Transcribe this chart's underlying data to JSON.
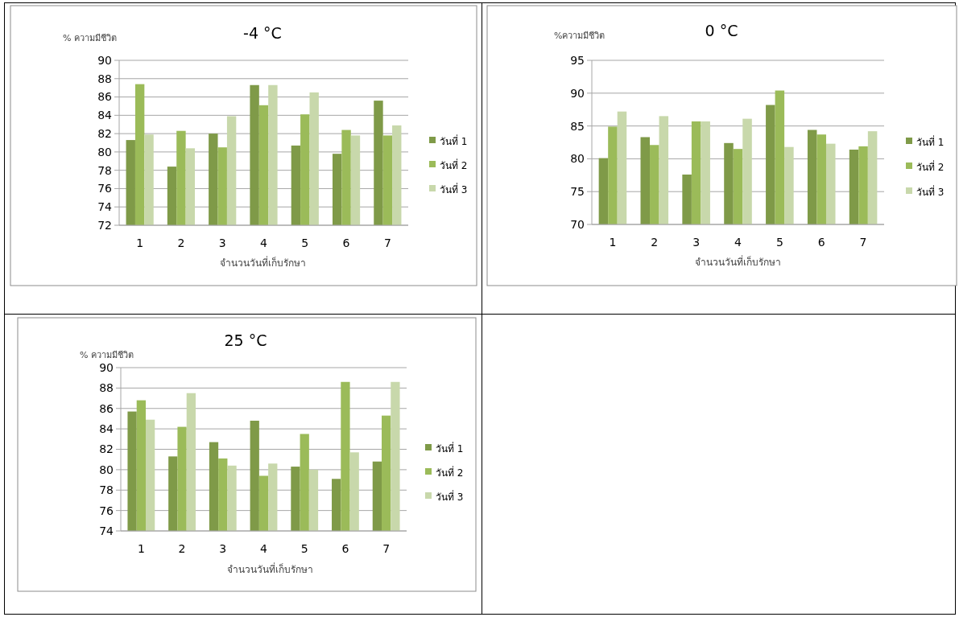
{
  "chart_data": [
    {
      "type": "bar",
      "title": "-4 °C",
      "ylabel": "% ความมีชีวิต",
      "xlabel": "จำนวนวันที่เก็บรักษา",
      "categories": [
        "1",
        "2",
        "3",
        "4",
        "5",
        "6",
        "7"
      ],
      "ylim": [
        72,
        90
      ],
      "yticks": [
        72,
        74,
        76,
        78,
        80,
        82,
        84,
        86,
        88,
        90
      ],
      "grid": "y",
      "legend": "right",
      "series": [
        {
          "name": "วันที่ 1",
          "color": "#7f9a48",
          "values": [
            81.3,
            78.4,
            82.0,
            87.3,
            80.7,
            79.8,
            85.6
          ]
        },
        {
          "name": "วันที่ 2",
          "color": "#9bbb59",
          "values": [
            87.4,
            82.3,
            80.5,
            85.1,
            84.1,
            82.4,
            81.8
          ]
        },
        {
          "name": "วันที่ 3",
          "color": "#c8d8ab",
          "values": [
            81.9,
            80.4,
            83.9,
            87.3,
            86.5,
            81.8,
            82.9
          ]
        }
      ]
    },
    {
      "type": "bar",
      "title": "0 °C",
      "ylabel": "%ความมีชีวิต",
      "xlabel": "จำนวนวันที่เก็บรักษา",
      "categories": [
        "1",
        "2",
        "3",
        "4",
        "5",
        "6",
        "7"
      ],
      "ylim": [
        70,
        95
      ],
      "yticks": [
        70,
        75,
        80,
        85,
        90,
        95
      ],
      "grid": "y",
      "legend": "right",
      "series": [
        {
          "name": "วันที่ 1",
          "color": "#7f9a48",
          "values": [
            80.1,
            83.3,
            77.6,
            82.4,
            88.2,
            84.4,
            81.4
          ]
        },
        {
          "name": "วันที่ 2",
          "color": "#9bbb59",
          "values": [
            84.9,
            82.1,
            85.7,
            81.5,
            90.4,
            83.7,
            81.9
          ]
        },
        {
          "name": "วันที่ 3",
          "color": "#c8d8ab",
          "values": [
            87.2,
            86.5,
            85.7,
            86.1,
            81.8,
            82.3,
            84.2
          ]
        }
      ]
    },
    {
      "type": "bar",
      "title": "25 °C",
      "ylabel": "% ความมีชีวิต",
      "xlabel": "จำนวนวันที่เก็บรักษา",
      "categories": [
        "1",
        "2",
        "3",
        "4",
        "5",
        "6",
        "7"
      ],
      "ylim": [
        74,
        90
      ],
      "yticks": [
        74,
        76,
        78,
        80,
        82,
        84,
        86,
        88,
        90
      ],
      "grid": "y",
      "legend": "right",
      "series": [
        {
          "name": "วันที่ 1",
          "color": "#7f9a48",
          "values": [
            85.7,
            81.3,
            82.7,
            84.8,
            80.3,
            79.1,
            80.8
          ]
        },
        {
          "name": "วันที่ 2",
          "color": "#9bbb59",
          "values": [
            86.8,
            84.2,
            81.1,
            79.4,
            83.5,
            88.6,
            85.3
          ]
        },
        {
          "name": "วันที่ 3",
          "color": "#c8d8ab",
          "values": [
            84.9,
            87.5,
            80.4,
            80.6,
            80.0,
            81.7,
            88.6
          ]
        }
      ]
    }
  ]
}
